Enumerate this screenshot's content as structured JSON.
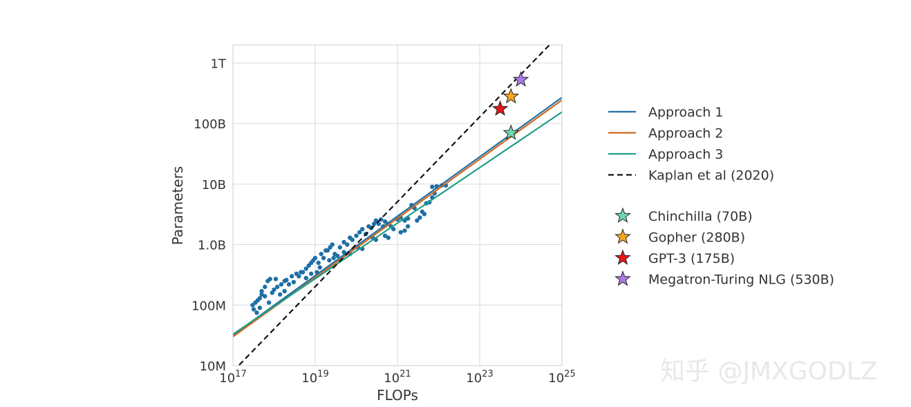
{
  "chart_data": {
    "type": "scatter",
    "title": "",
    "xlabel": "FLOPs",
    "ylabel": "Parameters",
    "xscale": "log",
    "yscale": "log",
    "xlim": [
      1e+17,
      1e+25
    ],
    "ylim": [
      10000000.0,
      2000000000000.0
    ],
    "x_ticks": [
      1e+17,
      1e+19,
      1e+21,
      1e+23,
      1e+25
    ],
    "x_tick_labels": [
      {
        "base": "10",
        "exp": "17"
      },
      {
        "base": "10",
        "exp": "19"
      },
      {
        "base": "10",
        "exp": "21"
      },
      {
        "base": "10",
        "exp": "23"
      },
      {
        "base": "10",
        "exp": "25"
      }
    ],
    "y_ticks": [
      10000000.0,
      100000000.0,
      1000000000.0,
      10000000000.0,
      100000000000.0,
      1000000000000.0
    ],
    "y_tick_labels": [
      "10M",
      "100M",
      "1.0B",
      "10B",
      "100B",
      "1T"
    ],
    "grid": true,
    "legend_position": "right",
    "series": [
      {
        "name": "Approach 1",
        "color": "#1f6fa5",
        "style": "solid",
        "x": [
          1e+17,
          1e+25
        ],
        "y": [
          32000000.0,
          270000000000.0
        ]
      },
      {
        "name": "Approach 2",
        "color": "#d2691e",
        "style": "solid",
        "x": [
          1e+17,
          1e+25
        ],
        "y": [
          30000000.0,
          245000000000.0
        ]
      },
      {
        "name": "Approach 3",
        "color": "#1f9e89",
        "style": "solid",
        "x": [
          1e+17,
          1e+25
        ],
        "y": [
          33000000.0,
          155000000000.0
        ]
      },
      {
        "name": "Kaplan et al (2020)",
        "color": "#111111",
        "style": "dashed",
        "x": [
          1e+17,
          5e+24
        ],
        "y": [
          8000000.0,
          2000000000000.0
        ]
      }
    ],
    "models": [
      {
        "name": "Chinchilla (70B)",
        "color": "#6fd6b8",
        "flops": 5.76e+23,
        "params": 70000000000.0
      },
      {
        "name": "Gopher (280B)",
        "color": "#f5a623",
        "flops": 5.76e+23,
        "params": 280000000000.0
      },
      {
        "name": "GPT-3 (175B)",
        "color": "#e3191c",
        "flops": 3.14e+23,
        "params": 175000000000.0
      },
      {
        "name": "Megatron-Turing NLG (530B)",
        "color": "#a97be6",
        "flops": 1e+24,
        "params": 530000000000.0
      }
    ],
    "scatter_points": [
      [
        3e+17,
        100000000.0
      ],
      [
        3.5e+17,
        110000000.0
      ],
      [
        4e+17,
        120000000.0
      ],
      [
        4.5e+17,
        130000000.0
      ],
      [
        5e+17,
        150000000.0
      ],
      [
        3.2e+17,
        85000000.0
      ],
      [
        4.5e+17,
        90000000.0
      ],
      [
        3.8e+17,
        75000000.0
      ],
      [
        5e+17,
        170000000.0
      ],
      [
        6e+17,
        200000000.0
      ],
      [
        7e+17,
        250000000.0
      ],
      [
        8e+17,
        270000000.0
      ],
      [
        6e+17,
        140000000.0
      ],
      [
        7.5e+17,
        110000000.0
      ],
      [
        9e+17,
        160000000.0
      ],
      [
        1e+18,
        180000000.0
      ],
      [
        1.2e+18,
        200000000.0
      ],
      [
        1.5e+18,
        220000000.0
      ],
      [
        1.8e+18,
        250000000.0
      ],
      [
        1.1e+18,
        270000000.0
      ],
      [
        1.4e+18,
        150000000.0
      ],
      [
        1.8e+18,
        170000000.0
      ],
      [
        2e+18,
        260000000.0
      ],
      [
        2.3e+18,
        220000000.0
      ],
      [
        2.7e+18,
        300000000.0
      ],
      [
        3e+18,
        240000000.0
      ],
      [
        3.5e+18,
        330000000.0
      ],
      [
        4e+18,
        300000000.0
      ],
      [
        4.5e+18,
        350000000.0
      ],
      [
        5e+18,
        350000000.0
      ],
      [
        6e+18,
        400000000.0
      ],
      [
        7e+18,
        450000000.0
      ],
      [
        8e+18,
        500000000.0
      ],
      [
        9e+18,
        550000000.0
      ],
      [
        6e+18,
        280000000.0
      ],
      [
        8e+18,
        330000000.0
      ],
      [
        1e+19,
        600000000.0
      ],
      [
        1.2e+19,
        500000000.0
      ],
      [
        1.4e+19,
        700000000.0
      ],
      [
        1.6e+19,
        600000000.0
      ],
      [
        1.8e+19,
        800000000.0
      ],
      [
        1.1e+19,
        350000000.0
      ],
      [
        1.3e+19,
        420000000.0
      ],
      [
        2e+19,
        800000000.0
      ],
      [
        2.3e+19,
        900000000.0
      ],
      [
        2.6e+19,
        1000000000.0
      ],
      [
        3e+19,
        700000000.0
      ],
      [
        3.5e+19,
        650000000.0
      ],
      [
        2.2e+19,
        550000000.0
      ],
      [
        2.8e+19,
        600000000.0
      ],
      [
        4e+19,
        900000000.0
      ],
      [
        5e+19,
        1100000000.0
      ],
      [
        6e+19,
        1000000000.0
      ],
      [
        7e+19,
        1300000000.0
      ],
      [
        8e+19,
        1200000000.0
      ],
      [
        5e+19,
        750000000.0
      ],
      [
        7e+19,
        700000000.0
      ],
      [
        1e+20,
        1400000000.0
      ],
      [
        1.2e+20,
        1600000000.0
      ],
      [
        1.4e+20,
        1800000000.0
      ],
      [
        1.7e+20,
        1500000000.0
      ],
      [
        2e+20,
        2000000000.0
      ],
      [
        1.1e+20,
        900000000.0
      ],
      [
        1.4e+20,
        850000000.0
      ],
      [
        2.3e+20,
        1900000000.0
      ],
      [
        2.7e+20,
        2200000000.0
      ],
      [
        3e+20,
        2500000000.0
      ],
      [
        3.5e+20,
        2200000000.0
      ],
      [
        4e+20,
        2600000000.0
      ],
      [
        2.5e+20,
        1300000000.0
      ],
      [
        3e+20,
        1200000000.0
      ],
      [
        4.5e+20,
        2000000000.0
      ],
      [
        5e+20,
        2400000000.0
      ],
      [
        6e+20,
        2200000000.0
      ],
      [
        7e+20,
        2000000000.0
      ],
      [
        8e+20,
        1800000000.0
      ],
      [
        5e+20,
        1400000000.0
      ],
      [
        6e+20,
        1300000000.0
      ],
      [
        1e+21,
        2600000000.0
      ],
      [
        1.2e+21,
        2800000000.0
      ],
      [
        1.5e+21,
        2500000000.0
      ],
      [
        1.8e+21,
        2700000000.0
      ],
      [
        1.2e+21,
        1600000000.0
      ],
      [
        1.5e+21,
        1700000000.0
      ],
      [
        1.8e+21,
        2000000000.0
      ],
      [
        2.2e+21,
        4500000000.0
      ],
      [
        2.6e+21,
        4000000000.0
      ],
      [
        3e+21,
        2500000000.0
      ],
      [
        3.5e+21,
        2800000000.0
      ],
      [
        4e+21,
        3500000000.0
      ],
      [
        4.5e+21,
        3200000000.0
      ],
      [
        5e+21,
        4800000000.0
      ],
      [
        6e+21,
        5000000000.0
      ],
      [
        7e+21,
        6000000000.0
      ],
      [
        8e+21,
        7000000000.0
      ],
      [
        7e+21,
        9000000000.0
      ],
      [
        9e+21,
        9200000000.0
      ],
      [
        1.2e+22,
        9500000000.0
      ],
      [
        1.5e+22,
        9500000000.0
      ]
    ]
  },
  "watermark": "知乎 @JMXGODLZ"
}
